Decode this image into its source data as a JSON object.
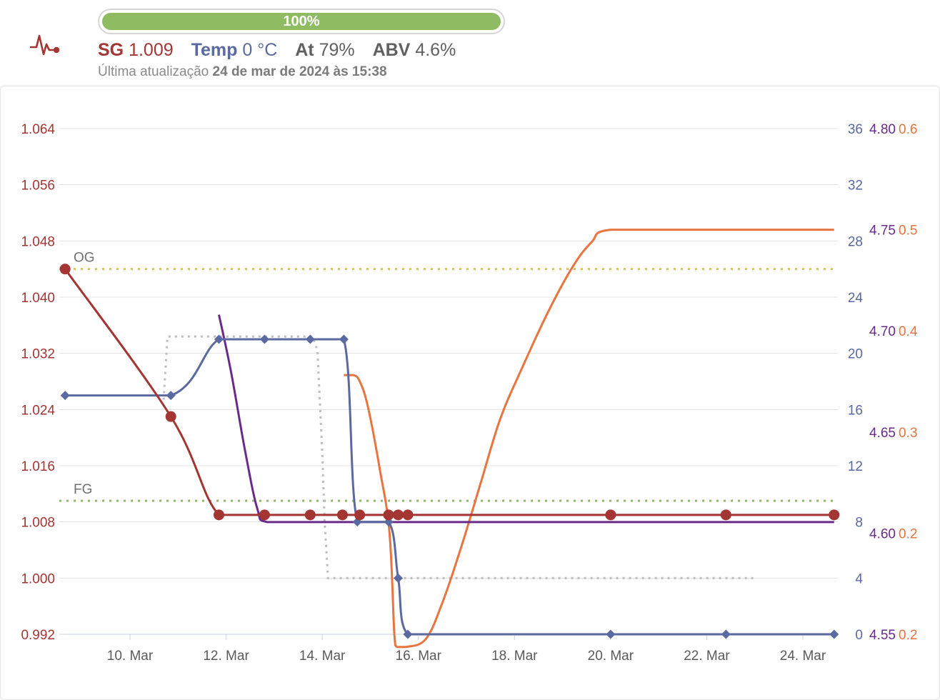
{
  "header": {
    "progress_value": 100,
    "progress_label": "100%",
    "readings": {
      "sg_label": "SG",
      "sg_value": "1.009",
      "temp_label": "Temp",
      "temp_value": "0 °C",
      "att_label": "At",
      "att_value": "79%",
      "abv_label": "ABV",
      "abv_value": "4.6%"
    },
    "updated_prefix": "Última atualização",
    "updated_value": "24 de mar de 2024 às 15:38"
  },
  "colors": {
    "sg": "#a33533",
    "temp": "#5a6aa0",
    "purple": "#6a2a8a",
    "orange": "#e8743f",
    "og_line": "#e4c43c",
    "fg_line": "#8fbb63",
    "dotted": "#bdbdbd",
    "progress": "#8fbb63"
  },
  "chart_data": {
    "type": "line",
    "x_ticks": [
      {
        "day": 10,
        "label": "10. Mar"
      },
      {
        "day": 12,
        "label": "12. Mar"
      },
      {
        "day": 14,
        "label": "14. Mar"
      },
      {
        "day": 16,
        "label": "16. Mar"
      },
      {
        "day": 18,
        "label": "18. Mar"
      },
      {
        "day": 20,
        "label": "20. Mar"
      },
      {
        "day": 22,
        "label": "22. Mar"
      },
      {
        "day": 24,
        "label": "24. Mar"
      }
    ],
    "axes": {
      "sg": {
        "min": 0.992,
        "max": 1.064,
        "ticks": [
          "1.064",
          "1.056",
          "1.048",
          "1.040",
          "1.032",
          "1.024",
          "1.016",
          "1.008",
          "1.000",
          "0.992"
        ]
      },
      "temp": {
        "min": 0,
        "max": 36,
        "ticks": [
          "36",
          "32",
          "28",
          "24",
          "20",
          "16",
          "12",
          "8",
          "4",
          "0"
        ]
      },
      "purple": {
        "min": 4.55,
        "max": 4.8,
        "ticks": [
          "4.80",
          "4.75",
          "4.70",
          "4.65",
          "4.60",
          "4.55"
        ]
      },
      "orange": {
        "min": 0.2,
        "max": 0.6,
        "ticks": [
          "0.6",
          "0.5",
          "0.4",
          "0.3",
          "0.2",
          "0.2"
        ]
      }
    },
    "annotations": [
      {
        "label": "OG",
        "value": 1.044
      },
      {
        "label": "FG",
        "value": 1.011
      }
    ],
    "series": [
      {
        "key": "sg",
        "marker": "circle",
        "points": [
          [
            8.65,
            1.044
          ],
          [
            10.85,
            1.023
          ],
          [
            11.85,
            1.009
          ],
          [
            12.8,
            1.009
          ],
          [
            13.75,
            1.009
          ],
          [
            14.42,
            1.009
          ],
          [
            14.78,
            1.009
          ],
          [
            15.38,
            1.009
          ],
          [
            15.58,
            1.009
          ],
          [
            15.78,
            1.009
          ],
          [
            20,
            1.009
          ],
          [
            22.4,
            1.009
          ],
          [
            24.65,
            1.009
          ]
        ]
      },
      {
        "key": "temp",
        "marker": "diamond",
        "points": [
          [
            8.65,
            17
          ],
          [
            10.85,
            17
          ],
          [
            11.85,
            21
          ],
          [
            12.8,
            21
          ],
          [
            13.75,
            21
          ],
          [
            14.45,
            21
          ],
          [
            14.73,
            8
          ],
          [
            15.38,
            8
          ],
          [
            15.58,
            4
          ],
          [
            15.78,
            0
          ],
          [
            20,
            0
          ],
          [
            22.4,
            0
          ],
          [
            24.65,
            0
          ]
        ]
      },
      {
        "key": "purple",
        "marker": "none",
        "points": [
          [
            11.85,
            4.708
          ],
          [
            12.1,
            4.68
          ],
          [
            12.4,
            4.64
          ],
          [
            12.65,
            4.612
          ],
          [
            12.85,
            4.6055
          ],
          [
            24.65,
            4.6055
          ]
        ]
      },
      {
        "key": "orange",
        "marker": "none",
        "points": [
          [
            14.45,
            0.405
          ],
          [
            14.65,
            0.405
          ],
          [
            14.78,
            0.4
          ],
          [
            14.95,
            0.38
          ],
          [
            15.2,
            0.33
          ],
          [
            15.4,
            0.28
          ],
          [
            15.5,
            0.2
          ],
          [
            15.55,
            0.19
          ],
          [
            15.75,
            0.19
          ],
          [
            16.15,
            0.196
          ],
          [
            16.5,
            0.225
          ],
          [
            16.9,
            0.27
          ],
          [
            17.3,
            0.32
          ],
          [
            17.7,
            0.37
          ],
          [
            18.15,
            0.41
          ],
          [
            18.7,
            0.455
          ],
          [
            19.2,
            0.49
          ],
          [
            19.6,
            0.51
          ],
          [
            20,
            0.52
          ],
          [
            24.65,
            0.52
          ]
        ]
      },
      {
        "key": "target_temp",
        "marker": "none",
        "points": [
          [
            10.7,
            16.7
          ],
          [
            10.78,
            21.2
          ],
          [
            11.9,
            21.2
          ],
          [
            13.8,
            21.2
          ],
          [
            13.9,
            20.2
          ],
          [
            14.0,
            13
          ],
          [
            14.05,
            8
          ],
          [
            14.12,
            4
          ],
          [
            14.2,
            4
          ],
          [
            23,
            4
          ]
        ]
      }
    ]
  }
}
